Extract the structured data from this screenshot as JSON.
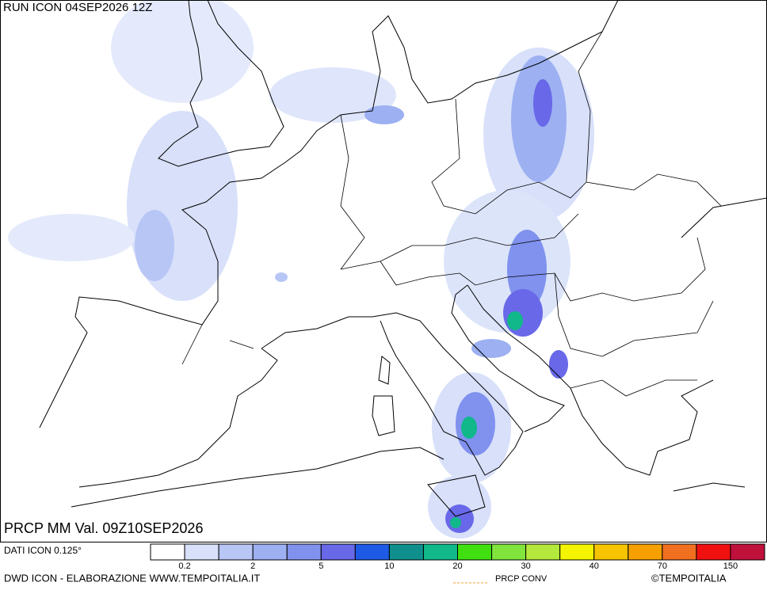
{
  "header": {
    "run": "RUN ICON 04SEP2026 12Z"
  },
  "map": {
    "field": "PRCP MM Val. 09Z10SEP2026"
  },
  "legend": {
    "source": "DATI ICON 0.125°",
    "colors": [
      "#ffffff",
      "#d8e0fa",
      "#b8c6f5",
      "#9cb0f2",
      "#8092ee",
      "#6868e8",
      "#1e5ae6",
      "#10908c",
      "#10b88a",
      "#40e010",
      "#80e43c",
      "#b4e83c",
      "#f4f400",
      "#f6c400",
      "#f6a000",
      "#f07020",
      "#f01010",
      "#c0103c"
    ],
    "labels": [
      0.2,
      2,
      5,
      10,
      20,
      30,
      40,
      70,
      150
    ]
  },
  "footer": {
    "credit": "DWD ICON - ELABORAZIONE WWW.TEMPOITALIA.IT",
    "conv": "PRCP CONV",
    "copyright": "©TEMPOITALIA"
  }
}
